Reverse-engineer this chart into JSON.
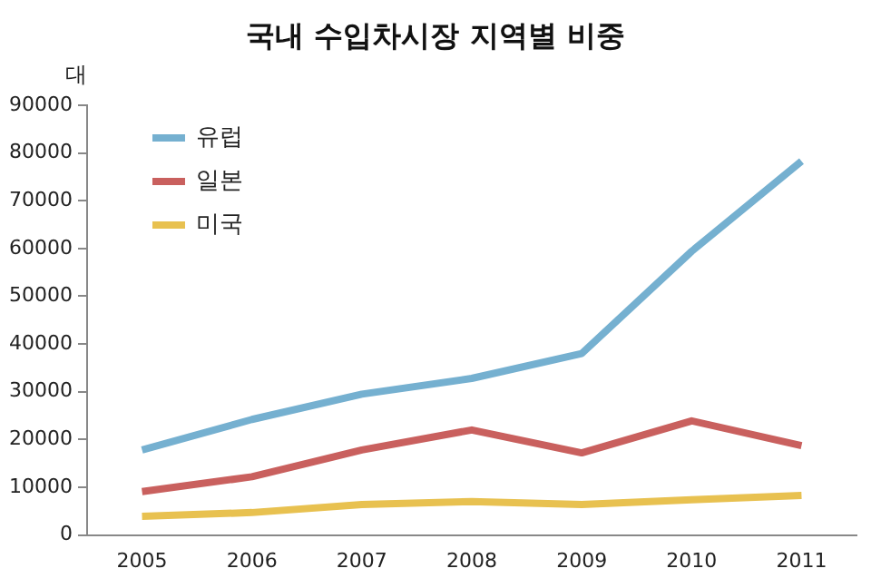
{
  "chart_data": {
    "type": "line",
    "title": "국내 수입차시장 지역별 비중",
    "ylabel": "대",
    "categories": [
      "2005",
      "2006",
      "2007",
      "2008",
      "2009",
      "2010",
      "2011"
    ],
    "series": [
      {
        "name": "유럽",
        "color": "#75b0d0",
        "values": [
          17800,
          24200,
          29500,
          32800,
          38000,
          59400,
          78300
        ]
      },
      {
        "name": "일본",
        "color": "#c9605e",
        "values": [
          9100,
          12200,
          17800,
          22000,
          17200,
          23900,
          18700
        ]
      },
      {
        "name": "미국",
        "color": "#e8c150",
        "values": [
          3900,
          4700,
          6400,
          7000,
          6400,
          7400,
          8300
        ]
      }
    ],
    "ylim": [
      0,
      90000
    ],
    "yticks": [
      0,
      10000,
      20000,
      30000,
      40000,
      50000,
      60000,
      70000,
      80000,
      90000
    ],
    "grid": false,
    "legend": "top left",
    "marker": "none",
    "line_style": "solid"
  }
}
